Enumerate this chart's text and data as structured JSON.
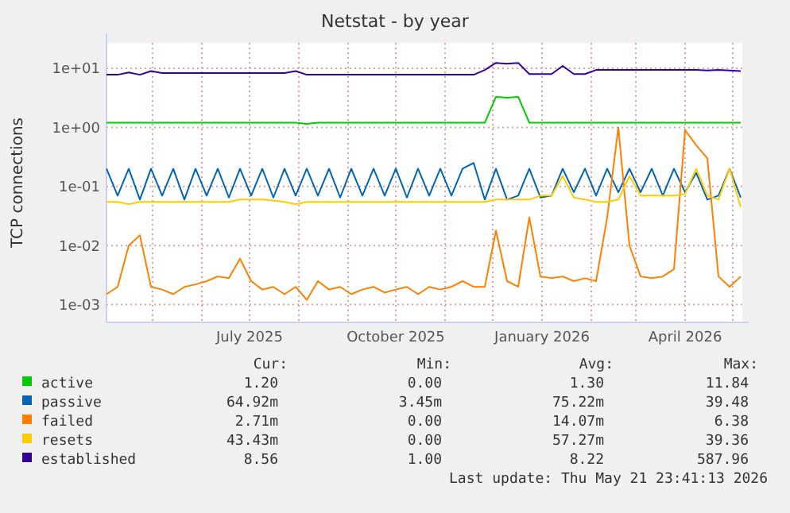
{
  "chart_data": {
    "type": "line",
    "title": "Netstat - by year",
    "ylabel": "TCP connections",
    "log": true,
    "grid": true,
    "legend": "bottom",
    "xlim": [
      "2025-04-02",
      "2026-05-07"
    ],
    "ylim": [
      0.0005,
      27
    ],
    "xticks": [
      {
        "value": "2025-05-01",
        "label": null
      },
      {
        "value": "2025-06-01",
        "label": null
      },
      {
        "value": "2025-07-01",
        "label": "July 2025"
      },
      {
        "value": "2025-08-01",
        "label": null
      },
      {
        "value": "2025-09-01",
        "label": null
      },
      {
        "value": "2025-10-01",
        "label": "October 2025"
      },
      {
        "value": "2025-11-01",
        "label": null
      },
      {
        "value": "2025-12-01",
        "label": null
      },
      {
        "value": "2026-01-01",
        "label": "January 2026"
      },
      {
        "value": "2026-02-01",
        "label": null
      },
      {
        "value": "2026-03-01",
        "label": null
      },
      {
        "value": "2026-04-01",
        "label": "April 2026"
      },
      {
        "value": "2026-05-01",
        "label": null
      }
    ],
    "yticks": [
      {
        "value": 0.001,
        "label": "1e-03"
      },
      {
        "value": 0.01,
        "label": "1e-02"
      },
      {
        "value": 0.1,
        "label": "1e-01"
      },
      {
        "value": 1,
        "label": "1e+00"
      },
      {
        "value": 10,
        "label": "1e+01"
      }
    ],
    "x": [
      "2025-04-02",
      "2025-04-09",
      "2025-04-16",
      "2025-04-23",
      "2025-04-30",
      "2025-05-07",
      "2025-05-14",
      "2025-05-21",
      "2025-05-28",
      "2025-06-04",
      "2025-06-11",
      "2025-06-18",
      "2025-06-25",
      "2025-07-02",
      "2025-07-09",
      "2025-07-16",
      "2025-07-23",
      "2025-07-30",
      "2025-08-06",
      "2025-08-13",
      "2025-08-20",
      "2025-08-27",
      "2025-09-03",
      "2025-09-10",
      "2025-09-17",
      "2025-09-24",
      "2025-10-01",
      "2025-10-08",
      "2025-10-15",
      "2025-10-22",
      "2025-10-29",
      "2025-11-05",
      "2025-11-12",
      "2025-11-19",
      "2025-11-26",
      "2025-12-03",
      "2025-12-10",
      "2025-12-17",
      "2025-12-24",
      "2025-12-31",
      "2026-01-07",
      "2026-01-14",
      "2026-01-21",
      "2026-01-28",
      "2026-02-04",
      "2026-02-11",
      "2026-02-18",
      "2026-02-25",
      "2026-03-04",
      "2026-03-11",
      "2026-03-18",
      "2026-03-25",
      "2026-04-01",
      "2026-04-08",
      "2026-04-15",
      "2026-04-22",
      "2026-04-29",
      "2026-05-06"
    ],
    "series": [
      {
        "name": "active",
        "color": "#00cc00",
        "values": [
          1.2,
          1.2,
          1.2,
          1.2,
          1.2,
          1.2,
          1.2,
          1.2,
          1.2,
          1.2,
          1.2,
          1.2,
          1.2,
          1.2,
          1.2,
          1.2,
          1.2,
          1.2,
          1.15,
          1.2,
          1.2,
          1.2,
          1.2,
          1.2,
          1.2,
          1.2,
          1.2,
          1.2,
          1.2,
          1.2,
          1.2,
          1.2,
          1.2,
          1.2,
          1.2,
          3.3,
          3.2,
          3.3,
          1.2,
          1.2,
          1.2,
          1.2,
          1.2,
          1.2,
          1.2,
          1.2,
          1.2,
          1.2,
          1.2,
          1.2,
          1.2,
          1.2,
          1.2,
          1.2,
          1.2,
          1.2,
          1.2,
          1.2
        ]
      },
      {
        "name": "passive",
        "color": "#0066b3",
        "values": [
          0.2,
          0.07,
          0.2,
          0.06,
          0.2,
          0.07,
          0.2,
          0.06,
          0.2,
          0.07,
          0.2,
          0.065,
          0.2,
          0.07,
          0.2,
          0.065,
          0.2,
          0.07,
          0.2,
          0.07,
          0.2,
          0.065,
          0.2,
          0.07,
          0.2,
          0.07,
          0.2,
          0.065,
          0.2,
          0.07,
          0.2,
          0.07,
          0.2,
          0.25,
          0.06,
          0.2,
          0.06,
          0.07,
          0.2,
          0.065,
          0.07,
          0.2,
          0.08,
          0.2,
          0.07,
          0.2,
          0.08,
          0.2,
          0.08,
          0.2,
          0.07,
          0.2,
          0.08,
          0.17,
          0.06,
          0.07,
          0.2,
          0.065
        ]
      },
      {
        "name": "failed",
        "color": "#ff8000",
        "values": [
          0.0015,
          0.002,
          0.01,
          0.015,
          0.002,
          0.0018,
          0.0015,
          0.002,
          0.0022,
          0.0025,
          0.003,
          0.0028,
          0.006,
          0.0025,
          0.0018,
          0.002,
          0.0015,
          0.002,
          0.0012,
          0.0025,
          0.0018,
          0.002,
          0.0015,
          0.0018,
          0.002,
          0.0016,
          0.0018,
          0.002,
          0.0015,
          0.002,
          0.0018,
          0.002,
          0.0025,
          0.002,
          0.002,
          0.018,
          0.0025,
          0.002,
          0.03,
          0.003,
          0.0028,
          0.003,
          0.0025,
          0.0028,
          0.0025,
          0.03,
          1.0,
          0.01,
          0.003,
          0.0028,
          0.003,
          0.004,
          0.9,
          0.5,
          0.3,
          0.003,
          0.002,
          0.003
        ]
      },
      {
        "name": "resets",
        "color": "#ffcc00",
        "values": [
          0.055,
          0.055,
          0.05,
          0.055,
          0.055,
          0.055,
          0.055,
          0.055,
          0.055,
          0.055,
          0.055,
          0.055,
          0.06,
          0.06,
          0.06,
          0.058,
          0.055,
          0.05,
          0.055,
          0.055,
          0.055,
          0.055,
          0.055,
          0.055,
          0.055,
          0.055,
          0.055,
          0.055,
          0.055,
          0.055,
          0.055,
          0.055,
          0.055,
          0.055,
          0.055,
          0.06,
          0.06,
          0.06,
          0.06,
          0.07,
          0.07,
          0.15,
          0.065,
          0.06,
          0.055,
          0.055,
          0.06,
          0.15,
          0.07,
          0.07,
          0.07,
          0.07,
          0.075,
          0.2,
          0.07,
          0.06,
          0.2,
          0.045
        ]
      },
      {
        "name": "established",
        "color": "#330099",
        "values": [
          7.8,
          7.8,
          8.5,
          7.8,
          9.0,
          8.3,
          8.3,
          8.3,
          8.3,
          8.3,
          8.3,
          8.3,
          8.3,
          8.3,
          8.3,
          8.3,
          8.3,
          9.0,
          7.8,
          7.8,
          7.8,
          7.8,
          7.8,
          7.8,
          7.8,
          7.8,
          7.8,
          7.8,
          7.8,
          7.8,
          7.8,
          7.8,
          7.8,
          7.8,
          9.4,
          12.4,
          12.0,
          12.4,
          8.0,
          8.0,
          8.0,
          11.0,
          8.0,
          8.0,
          9.4,
          9.4,
          9.4,
          9.4,
          9.4,
          9.4,
          9.4,
          9.4,
          9.4,
          9.4,
          9.2,
          9.4,
          9.2,
          9.0
        ]
      }
    ],
    "annotations": [
      "Cur:",
      "Min:",
      "Avg:",
      "Max:",
      "1.20",
      "0.00",
      "1.30",
      "11.84",
      "64.92m",
      "3.45m",
      "75.22m",
      "39.48",
      "2.71m",
      "0.00",
      "14.07m",
      "6.38",
      "43.43m",
      "0.00",
      "57.27m",
      "39.36",
      "8.56",
      "1.00",
      "8.22",
      "587.96",
      "Last update: Thu May 21 23:41:13 2026"
    ]
  }
}
